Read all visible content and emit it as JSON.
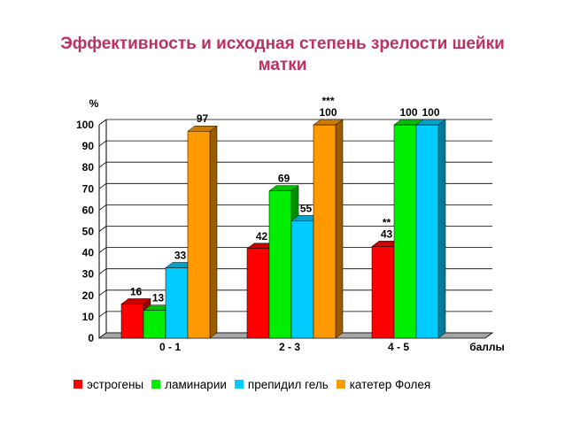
{
  "chart_data": {
    "type": "bar",
    "title_lines": [
      "Эффективность и исходная степень зрелости шейки",
      "матки"
    ],
    "ylabel": "%",
    "xlabel": "баллы",
    "ylim": [
      0,
      100
    ],
    "yticks": [
      "0",
      "10",
      "20",
      "30",
      "40",
      "50",
      "60",
      "70",
      "80",
      "90",
      "100"
    ],
    "categories": [
      "0 - 1",
      "2 - 3",
      "4 - 5"
    ],
    "series": [
      {
        "name": "эстрогены",
        "color": "#ff0000",
        "values": [
          16,
          42,
          43
        ]
      },
      {
        "name": "ламинарии",
        "color": "#00ee00",
        "values": [
          13,
          69,
          100
        ]
      },
      {
        "name": "препидил гель",
        "color": "#00ccff",
        "values": [
          33,
          55,
          100
        ]
      },
      {
        "name": "катетер Фолея",
        "color": "#ff9900",
        "values": [
          97,
          100,
          null
        ]
      }
    ],
    "annotations": [
      {
        "category": 1,
        "series": 3,
        "text": "***"
      },
      {
        "category": 2,
        "series": 0,
        "text": "**"
      }
    ],
    "grid": true,
    "legend_position": "bottom"
  }
}
